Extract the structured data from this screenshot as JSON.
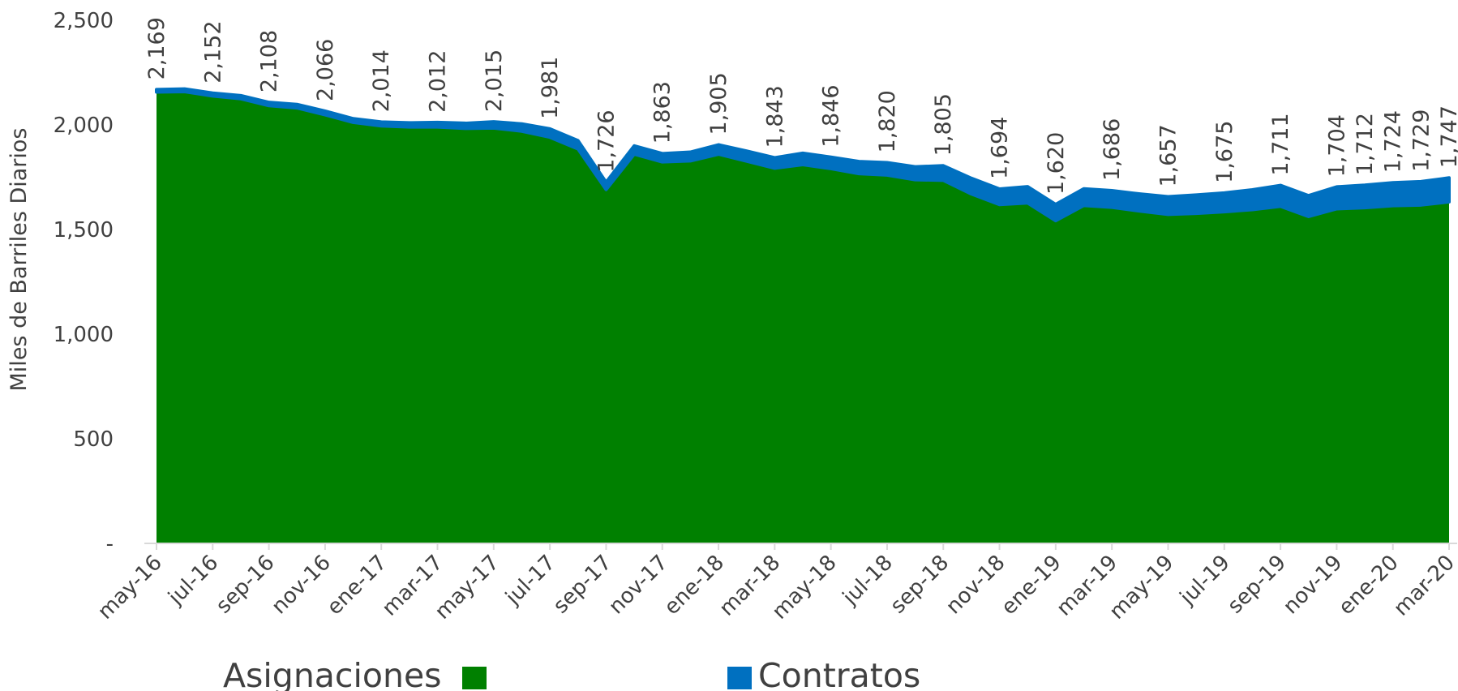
{
  "chart_data": {
    "type": "stacked_area",
    "y_axis_label": "Miles de Barriles Diarios",
    "categories": [
      "may-16",
      null,
      "jul-16",
      null,
      "sep-16",
      null,
      "nov-16",
      null,
      "ene-17",
      null,
      "mar-17",
      null,
      "may-17",
      null,
      "jul-17",
      null,
      "sep-17",
      null,
      "nov-17",
      null,
      "ene-18",
      null,
      "mar-18",
      null,
      "may-18",
      null,
      "jul-18",
      null,
      "sep-18",
      null,
      "nov-18",
      null,
      "ene-19",
      null,
      "mar-19",
      null,
      "may-19",
      null,
      "jul-19",
      null,
      "sep-19",
      null,
      "nov-19",
      null,
      "ene-20",
      null,
      "mar-20"
    ],
    "series": [
      {
        "name": "Asignaciones",
        "color": "#008000",
        "values": [
          2157,
          2159,
          2138,
          2125,
          2092,
          2081,
          2048,
          2012,
          1995,
          1990,
          1990,
          1983,
          1985,
          1970,
          1941,
          1885,
          1691,
          1860,
          1823,
          1828,
          1860,
          1827,
          1793,
          1810,
          1791,
          1767,
          1760,
          1738,
          1735,
          1670,
          1619,
          1627,
          1542,
          1615,
          1606,
          1588,
          1572,
          1577,
          1585,
          1595,
          1611,
          1562,
          1599,
          1604,
          1614,
          1617,
          1632
        ]
      },
      {
        "name": "Contratos",
        "color": "#0070c0",
        "values": [
          12,
          13,
          14,
          15,
          16,
          17,
          18,
          18,
          19,
          20,
          22,
          25,
          30,
          35,
          40,
          40,
          35,
          40,
          40,
          42,
          45,
          48,
          50,
          55,
          55,
          58,
          60,
          62,
          70,
          75,
          75,
          78,
          78,
          80,
          80,
          82,
          85,
          88,
          90,
          95,
          100,
          100,
          105,
          108,
          110,
          112,
          115
        ]
      }
    ],
    "data_labels": {
      "values": [
        2169,
        null,
        2152,
        null,
        2108,
        null,
        2066,
        null,
        2014,
        null,
        2012,
        null,
        2015,
        null,
        1981,
        null,
        1726,
        null,
        1863,
        null,
        1905,
        null,
        1843,
        null,
        1846,
        null,
        1820,
        null,
        1805,
        null,
        1694,
        null,
        1620,
        null,
        1686,
        null,
        1657,
        null,
        1675,
        null,
        1711,
        null,
        1704,
        1712,
        1724,
        1729,
        1747
      ],
      "value_labels": [
        "2,169",
        null,
        "2,152",
        null,
        "2,108",
        null,
        "2,066",
        null,
        "2,014",
        null,
        "2,012",
        null,
        "2,015",
        null,
        "1,981",
        null,
        "1,726",
        null,
        "1,863",
        null,
        "1,905",
        null,
        "1,843",
        null,
        "1,846",
        null,
        "1,820",
        null,
        "1,805",
        null,
        "1,694",
        null,
        "1,620",
        null,
        "1,686",
        null,
        "1,657",
        null,
        "1,675",
        null,
        "1,711",
        null,
        "1,704",
        "1,712",
        "1,724",
        "1,729",
        "1,747"
      ]
    },
    "ylim": [
      0,
      2500
    ],
    "yticks": [
      {
        "value": 0,
        "label": "-"
      },
      500,
      {
        "value": 1000,
        "label": "1,000"
      },
      {
        "value": 1500,
        "label": "1,500"
      },
      {
        "value": 2000,
        "label": "2,000"
      },
      {
        "value": 2500,
        "label": "2,500"
      }
    ],
    "legend": "bottom"
  }
}
